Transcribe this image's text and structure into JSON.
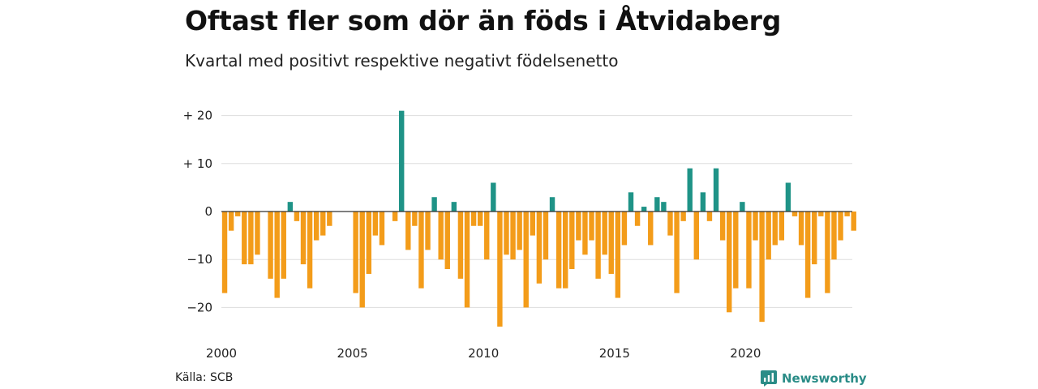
{
  "header": {
    "title": "Oftast fler som dör än föds i Åtvidaberg",
    "subtitle": "Kvartal med positivt respektive negativt födelsenetto"
  },
  "footer": {
    "source": "Källa: SCB",
    "brand": "Newsworthy",
    "brand_icon": "newsworthy-logo-icon"
  },
  "colors": {
    "positive": "#1f9387",
    "negative": "#f39c1a",
    "grid": "#dddddd",
    "zero_line": "#333333",
    "brand": "#2a8c87"
  },
  "chart_data": {
    "type": "bar",
    "title": "Oftast fler som dör än föds i Åtvidaberg",
    "subtitle": "Kvartal med positivt respektive negativt födelsenetto",
    "xlabel": "",
    "ylabel": "",
    "x_start": "2000Q1",
    "x_end": "2024Q1",
    "x_ticks": [
      {
        "year": 2000,
        "label": "2000"
      },
      {
        "year": 2005,
        "label": "2005"
      },
      {
        "year": 2010,
        "label": "2010"
      },
      {
        "year": 2015,
        "label": "2015"
      },
      {
        "year": 2020,
        "label": "2020"
      }
    ],
    "y_ticks": [
      {
        "value": 20,
        "label": "+ 20"
      },
      {
        "value": 10,
        "label": "+ 10"
      },
      {
        "value": 0,
        "label": "0"
      },
      {
        "value": -10,
        "label": "−10"
      },
      {
        "value": -20,
        "label": "−20"
      }
    ],
    "ylim": [
      -24,
      21
    ],
    "grid": true,
    "legend": "none",
    "categories": [
      "2000Q1",
      "2000Q2",
      "2000Q3",
      "2000Q4",
      "2001Q1",
      "2001Q2",
      "2001Q3",
      "2001Q4",
      "2002Q1",
      "2002Q2",
      "2002Q3",
      "2002Q4",
      "2003Q1",
      "2003Q2",
      "2003Q3",
      "2003Q4",
      "2004Q1",
      "2004Q2",
      "2004Q3",
      "2004Q4",
      "2005Q1",
      "2005Q2",
      "2005Q3",
      "2005Q4",
      "2006Q1",
      "2006Q2",
      "2006Q3",
      "2006Q4",
      "2007Q1",
      "2007Q2",
      "2007Q3",
      "2007Q4",
      "2008Q1",
      "2008Q2",
      "2008Q3",
      "2008Q4",
      "2009Q1",
      "2009Q2",
      "2009Q3",
      "2009Q4",
      "2010Q1",
      "2010Q2",
      "2010Q3",
      "2010Q4",
      "2011Q1",
      "2011Q2",
      "2011Q3",
      "2011Q4",
      "2012Q1",
      "2012Q2",
      "2012Q3",
      "2012Q4",
      "2013Q1",
      "2013Q2",
      "2013Q3",
      "2013Q4",
      "2014Q1",
      "2014Q2",
      "2014Q3",
      "2014Q4",
      "2015Q1",
      "2015Q2",
      "2015Q3",
      "2015Q4",
      "2016Q1",
      "2016Q2",
      "2016Q3",
      "2016Q4",
      "2017Q1",
      "2017Q2",
      "2017Q3",
      "2017Q4",
      "2018Q1",
      "2018Q2",
      "2018Q3",
      "2018Q4",
      "2019Q1",
      "2019Q2",
      "2019Q3",
      "2019Q4",
      "2020Q1",
      "2020Q2",
      "2020Q3",
      "2020Q4",
      "2021Q1",
      "2021Q2",
      "2021Q3",
      "2021Q4",
      "2022Q1",
      "2022Q2",
      "2022Q3",
      "2022Q4",
      "2023Q1",
      "2023Q2",
      "2023Q3",
      "2023Q4",
      "2024Q1"
    ],
    "values": [
      -17,
      -4,
      -1,
      -11,
      -11,
      -9,
      0,
      -14,
      -18,
      -14,
      2,
      -2,
      -11,
      -16,
      -6,
      -5,
      -3,
      0,
      0,
      0,
      -17,
      -20,
      -13,
      -5,
      -7,
      0,
      -2,
      21,
      -8,
      -3,
      -16,
      -8,
      3,
      -10,
      -12,
      2,
      -14,
      -20,
      -3,
      -3,
      -10,
      6,
      -24,
      -9,
      -10,
      -8,
      -20,
      -5,
      -15,
      -10,
      3,
      -16,
      -16,
      -12,
      -6,
      -9,
      -6,
      -14,
      -9,
      -13,
      -18,
      -7,
      4,
      -3,
      1,
      -7,
      3,
      2,
      -5,
      -17,
      -2,
      9,
      -10,
      4,
      -2,
      9,
      -6,
      -21,
      -16,
      2,
      -16,
      -6,
      -23,
      -10,
      -7,
      -6,
      6,
      -1,
      -7,
      -18,
      -11,
      -1,
      -17,
      -10,
      -6,
      -1,
      -4
    ]
  }
}
